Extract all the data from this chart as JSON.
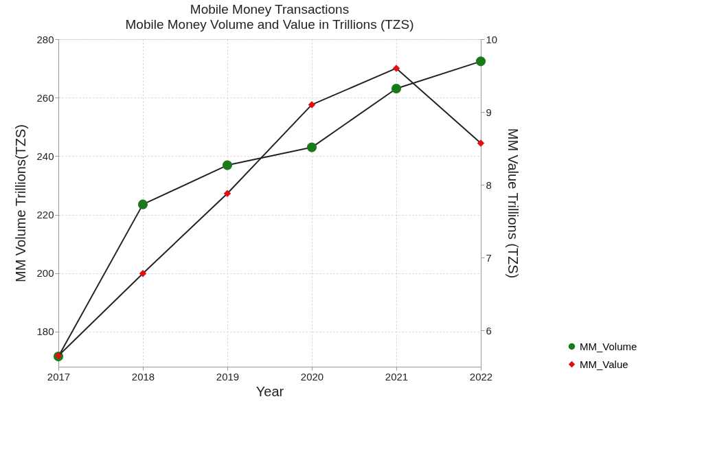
{
  "chart_data": {
    "type": "line",
    "title": "Mobile Money Transactions",
    "subtitle": "Mobile Money Volume and Value in Trillions (TZS)",
    "xlabel": "Year",
    "ylabel": "MM Volume Trillions(TZS)",
    "y2label": "MM Value Trillions (TZS)",
    "x": [
      2017,
      2018,
      2019,
      2020,
      2021,
      2022
    ],
    "xlim": [
      2017,
      2022
    ],
    "xticks": [
      2017,
      2018,
      2019,
      2020,
      2021,
      2022
    ],
    "ylim": [
      168,
      280
    ],
    "yticks": [
      180,
      200,
      220,
      240,
      260,
      280
    ],
    "y2lim": [
      5.5,
      10
    ],
    "y2ticks": [
      6,
      7,
      8,
      9,
      10
    ],
    "series": [
      {
        "name": "MM_Volume",
        "color": "#1a7a1a",
        "marker": "circle",
        "values": [
          171.5,
          223.5,
          236.9,
          243,
          263.1,
          272.4
        ]
      },
      {
        "name": "MM_Value",
        "color": "#e01010",
        "marker": "diamond",
        "axis": "y2",
        "values": [
          5.65,
          6.78,
          7.88,
          9.1,
          9.6,
          8.57
        ]
      }
    ],
    "grid": true,
    "legend": "bottom right",
    "line_style": "solid"
  }
}
